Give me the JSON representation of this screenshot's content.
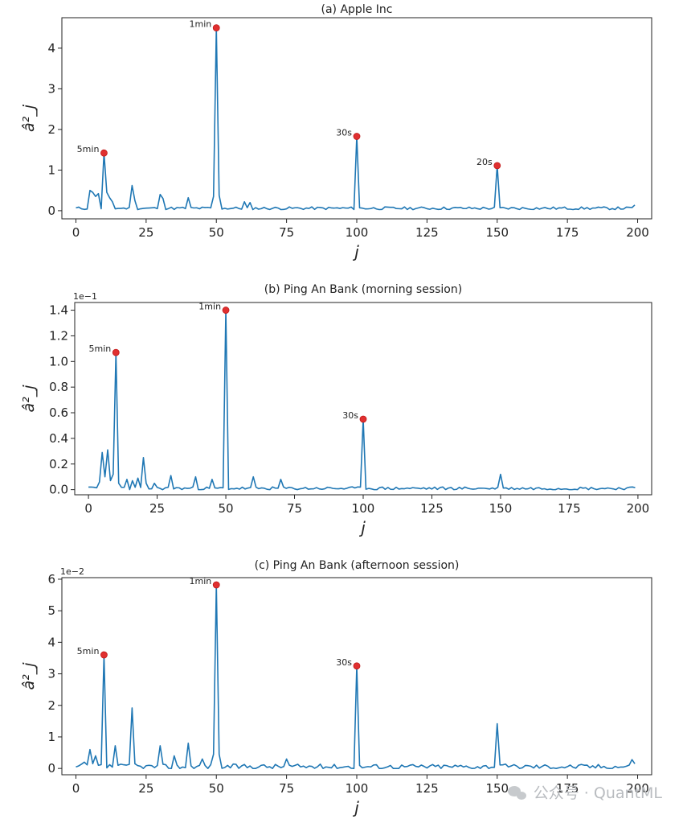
{
  "chart_data": [
    {
      "type": "line",
      "title": "(a) Apple Inc",
      "xlabel": "j",
      "ylabel": "â²_j",
      "offset_text": "",
      "xlim": [
        -5,
        205
      ],
      "ylim": [
        -0.2,
        4.75
      ],
      "xticks": [
        0,
        25,
        50,
        75,
        100,
        125,
        150,
        175,
        200
      ],
      "xtick_labels": [
        "0",
        "25",
        "50",
        "75",
        "100",
        "125",
        "150",
        "175",
        "200"
      ],
      "yticks": [
        0,
        1,
        2,
        3,
        4
      ],
      "ytick_labels": [
        "0",
        "1",
        "2",
        "3",
        "4"
      ],
      "color": "#1f77b4",
      "peaks": [
        {
          "label": "5min",
          "x": 10,
          "y": 1.42
        },
        {
          "label": "1min",
          "x": 50,
          "y": 4.5
        },
        {
          "label": "30s",
          "x": 100,
          "y": 1.83
        },
        {
          "label": "20s",
          "x": 150,
          "y": 1.11
        }
      ],
      "baseline": {
        "start": 0.06,
        "end": 0.06,
        "noise": 0.035,
        "seed": 11
      },
      "extras": [
        {
          "x": 5,
          "y": 0.5
        },
        {
          "x": 6,
          "y": 0.45
        },
        {
          "x": 7,
          "y": 0.35
        },
        {
          "x": 8,
          "y": 0.42
        },
        {
          "x": 11,
          "y": 0.45
        },
        {
          "x": 12,
          "y": 0.32
        },
        {
          "x": 13,
          "y": 0.22
        },
        {
          "x": 20,
          "y": 0.62
        },
        {
          "x": 21,
          "y": 0.25
        },
        {
          "x": 30,
          "y": 0.4
        },
        {
          "x": 31,
          "y": 0.3
        },
        {
          "x": 40,
          "y": 0.32
        },
        {
          "x": 49,
          "y": 0.35
        },
        {
          "x": 51,
          "y": 0.38
        },
        {
          "x": 60,
          "y": 0.22
        },
        {
          "x": 62,
          "y": 0.2
        },
        {
          "x": 199,
          "y": 0.14
        }
      ]
    },
    {
      "type": "line",
      "title": "(b) Ping An Bank (morning session)",
      "xlabel": "j",
      "ylabel": "â²_j",
      "offset_text": "1e−1",
      "xlim": [
        -5,
        205
      ],
      "ylim": [
        -0.04,
        1.46
      ],
      "xticks": [
        0,
        25,
        50,
        75,
        100,
        125,
        150,
        175,
        200
      ],
      "xtick_labels": [
        "0",
        "25",
        "50",
        "75",
        "100",
        "125",
        "150",
        "175",
        "200"
      ],
      "yticks": [
        0,
        0.2,
        0.4,
        0.6,
        0.8,
        1.0,
        1.2,
        1.4
      ],
      "ytick_labels": [
        "0.0",
        "0.2",
        "0.4",
        "0.6",
        "0.8",
        "1.0",
        "1.2",
        "1.4"
      ],
      "color": "#1f77b4",
      "peaks": [
        {
          "label": "5min",
          "x": 10,
          "y": 1.07
        },
        {
          "label": "1min",
          "x": 50,
          "y": 1.4
        },
        {
          "label": "30s",
          "x": 100,
          "y": 0.55
        }
      ],
      "baseline": {
        "start": 0.01,
        "end": 0.01,
        "noise": 0.012,
        "seed": 23
      },
      "extras": [
        {
          "x": 0,
          "y": 0.02
        },
        {
          "x": 4,
          "y": 0.06
        },
        {
          "x": 5,
          "y": 0.29
        },
        {
          "x": 6,
          "y": 0.1
        },
        {
          "x": 7,
          "y": 0.31
        },
        {
          "x": 8,
          "y": 0.07
        },
        {
          "x": 9,
          "y": 0.12
        },
        {
          "x": 11,
          "y": 0.05
        },
        {
          "x": 14,
          "y": 0.08
        },
        {
          "x": 16,
          "y": 0.07
        },
        {
          "x": 18,
          "y": 0.09
        },
        {
          "x": 20,
          "y": 0.25
        },
        {
          "x": 21,
          "y": 0.05
        },
        {
          "x": 24,
          "y": 0.05
        },
        {
          "x": 30,
          "y": 0.11
        },
        {
          "x": 39,
          "y": 0.1
        },
        {
          "x": 45,
          "y": 0.08
        },
        {
          "x": 60,
          "y": 0.1
        },
        {
          "x": 70,
          "y": 0.08
        },
        {
          "x": 150,
          "y": 0.12
        }
      ]
    },
    {
      "type": "line",
      "title": "(c) Ping An Bank (afternoon session)",
      "xlabel": "j",
      "ylabel": "â²_j",
      "offset_text": "1e−2",
      "xlim": [
        -5,
        205
      ],
      "ylim": [
        -0.2,
        6.05
      ],
      "xticks": [
        0,
        25,
        50,
        75,
        100,
        125,
        150,
        175,
        200
      ],
      "xtick_labels": [
        "0",
        "25",
        "50",
        "75",
        "100",
        "125",
        "150",
        "175",
        "200"
      ],
      "yticks": [
        0,
        1,
        2,
        3,
        4,
        5,
        6
      ],
      "ytick_labels": [
        "0",
        "1",
        "2",
        "3",
        "4",
        "5",
        "6"
      ],
      "color": "#1f77b4",
      "peaks": [
        {
          "label": "5min",
          "x": 10,
          "y": 3.6
        },
        {
          "label": "1min",
          "x": 50,
          "y": 5.82
        },
        {
          "label": "30s",
          "x": 100,
          "y": 3.25
        }
      ],
      "baseline": {
        "start": 0.06,
        "end": 0.06,
        "noise": 0.08,
        "seed": 37
      },
      "extras": [
        {
          "x": 0,
          "y": 0.05
        },
        {
          "x": 3,
          "y": 0.2
        },
        {
          "x": 5,
          "y": 0.6
        },
        {
          "x": 6,
          "y": 0.15
        },
        {
          "x": 7,
          "y": 0.4
        },
        {
          "x": 8,
          "y": 0.1
        },
        {
          "x": 14,
          "y": 0.72
        },
        {
          "x": 15,
          "y": 0.1
        },
        {
          "x": 20,
          "y": 1.92
        },
        {
          "x": 21,
          "y": 0.15
        },
        {
          "x": 30,
          "y": 0.72
        },
        {
          "x": 35,
          "y": 0.4
        },
        {
          "x": 40,
          "y": 0.8
        },
        {
          "x": 45,
          "y": 0.3
        },
        {
          "x": 49,
          "y": 0.45
        },
        {
          "x": 51,
          "y": 0.45
        },
        {
          "x": 75,
          "y": 0.3
        },
        {
          "x": 150,
          "y": 1.42
        },
        {
          "x": 198,
          "y": 0.28
        },
        {
          "x": 199,
          "y": 0.15
        }
      ]
    }
  ],
  "watermark": {
    "text": "公众号 · QuantML",
    "icon": "wechat-icon"
  }
}
